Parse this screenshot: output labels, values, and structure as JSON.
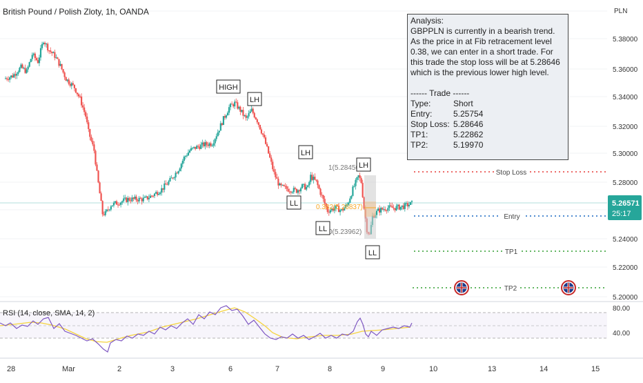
{
  "header": {
    "title": "British Pound / Polish Zloty, 1h, OANDA"
  },
  "currency_label": "PLN",
  "analysis": {
    "heading": "Analysis:",
    "body": "GBPPLN is currently in a bearish trend. As the price in at Fib retracement level 0.38, we can enter in a short trade. For this trade the stop loss will be at 5.28646 which is the previous lower high level.",
    "trade_title": "------ Trade ------",
    "rows": [
      {
        "key": "Type:",
        "value": "Short"
      },
      {
        "key": "Entry:",
        "value": "5.25754"
      },
      {
        "key": "Stop Loss:",
        "value": "5.28646"
      },
      {
        "key": "TP1:",
        "value": "5.22862"
      },
      {
        "key": "TP2:",
        "value": "5.19970"
      }
    ]
  },
  "colors": {
    "up": "#26a69a",
    "down": "#ef5350",
    "rsi": "#7e57c2",
    "rsi_ma": "#f5d33d",
    "stop": "#e53935",
    "entry": "#1565c0",
    "tp": "#2e9e2e",
    "price_tag": "#26a69a"
  },
  "last_price": {
    "value": "5.26571",
    "countdown": "25:17"
  },
  "levels": [
    {
      "label": "Stop Loss",
      "value": 5.28646,
      "type": "stop"
    },
    {
      "label": "Entry",
      "value": 5.25754,
      "type": "entry"
    },
    {
      "label": "TP1",
      "value": 5.22862,
      "type": "tp"
    },
    {
      "label": "TP2",
      "value": 5.1997,
      "type": "tp"
    }
  ],
  "fib": {
    "top": "1(5.28450)",
    "mid": "0.382(5.26837)",
    "bottom": "0(5.23962)"
  },
  "swing_labels": [
    "HIGH",
    "LH",
    "LH",
    "LH",
    "LL",
    "LL",
    "LL"
  ],
  "rsi_panel": {
    "label": "RSI (14, close, SMA, 14, 2)",
    "ticks": [
      "80.00",
      "40.00"
    ]
  },
  "chart_data": {
    "type": "line",
    "title": "British Pound / Polish Zloty, 1h, OANDA",
    "y_ticks": [
      "5.38000",
      "5.36000",
      "5.34000",
      "5.32000",
      "5.30000",
      "5.28000",
      "5.24000",
      "5.22000",
      "5.20000"
    ],
    "x_ticks": [
      "28",
      "Mar",
      "2",
      "3",
      "6",
      "7",
      "8",
      "9",
      "10",
      "13",
      "14",
      "15"
    ],
    "ylim": [
      5.195,
      5.392
    ],
    "series": [
      {
        "points": [
          [
            0,
            5.352
          ],
          [
            3,
            5.354
          ],
          [
            6,
            5.36
          ],
          [
            8,
            5.357
          ],
          [
            10,
            5.369
          ],
          [
            12,
            5.364
          ],
          [
            14,
            5.379
          ],
          [
            16,
            5.372
          ],
          [
            18,
            5.368
          ],
          [
            20,
            5.361
          ],
          [
            22,
            5.352
          ],
          [
            25,
            5.346
          ],
          [
            27,
            5.338
          ],
          [
            29,
            5.326
          ],
          [
            30,
            5.315
          ],
          [
            32,
            5.302
          ],
          [
            33,
            5.286
          ],
          [
            35,
            5.258
          ],
          [
            36,
            5.258
          ],
          [
            38,
            5.264
          ],
          [
            41,
            5.266
          ],
          [
            44,
            5.268
          ],
          [
            47,
            5.268
          ],
          [
            50,
            5.268
          ],
          [
            53,
            5.271
          ],
          [
            56,
            5.275
          ],
          [
            59,
            5.281
          ],
          [
            62,
            5.289
          ],
          [
            64,
            5.297
          ],
          [
            66,
            5.302
          ],
          [
            68,
            5.304
          ],
          [
            71,
            5.306
          ],
          [
            74,
            5.307
          ],
          [
            76,
            5.315
          ],
          [
            78,
            5.324
          ],
          [
            80,
            5.332
          ],
          [
            82,
            5.335
          ],
          [
            84,
            5.33
          ],
          [
            86,
            5.324
          ],
          [
            88,
            5.33
          ],
          [
            90,
            5.323
          ],
          [
            92,
            5.313
          ],
          [
            94,
            5.3
          ],
          [
            96,
            5.286
          ],
          [
            98,
            5.277
          ],
          [
            101,
            5.275
          ],
          [
            104,
            5.274
          ],
          [
            106,
            5.277
          ],
          [
            108,
            5.276
          ],
          [
            109,
            5.284
          ],
          [
            111,
            5.28
          ],
          [
            113,
            5.27
          ],
          [
            115,
            5.26
          ],
          [
            118,
            5.262
          ],
          [
            120,
            5.26
          ],
          [
            122,
            5.264
          ],
          [
            124,
            5.275
          ],
          [
            126,
            5.284
          ],
          [
            127,
            5.28
          ],
          [
            128,
            5.262
          ],
          [
            129,
            5.247
          ],
          [
            130,
            5.243
          ],
          [
            131,
            5.256
          ],
          [
            133,
            5.26
          ],
          [
            136,
            5.262
          ],
          [
            139,
            5.262
          ],
          [
            142,
            5.263
          ],
          [
            145,
            5.265
          ]
        ]
      }
    ]
  }
}
